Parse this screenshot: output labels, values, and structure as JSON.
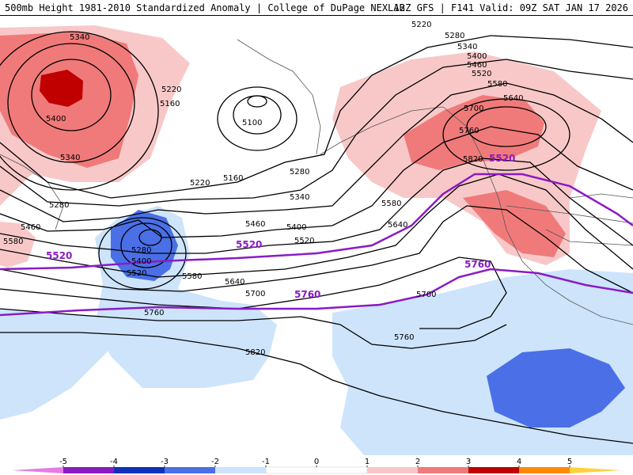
{
  "header": {
    "left": "500mb Height 1981-2010 Standardized Anomaly | College of DuPage NEXLAB",
    "right": "12Z GFS | F141 Valid: 09Z SAT JAN 17 2026"
  },
  "colors": {
    "neg5": "#e57ce5",
    "neg4": "#8a1bc4",
    "neg3": "#1030b8",
    "neg2": "#4a6fe6",
    "neg1": "#cde4fb",
    "pos1": "#f8c8c8",
    "pos2": "#f07a7a",
    "pos3": "#c00000",
    "pos4": "#ff8a00",
    "pos5": "#ffd23c",
    "purple_line": "#8a1bc4"
  },
  "contour_labels": [
    "5220",
    "5280",
    "5340",
    "5400",
    "5460",
    "5520",
    "5580",
    "5640",
    "5700",
    "5760",
    "5820",
    "5340",
    "5400",
    "5340",
    "5220",
    "5160",
    "5100",
    "5280",
    "5220",
    "5160",
    "5280",
    "5340",
    "5460",
    "5400",
    "5520",
    "5580",
    "5640",
    "5700",
    "5760",
    "5820",
    "5280",
    "5400",
    "5520",
    "5460",
    "5580",
    "5580",
    "5640",
    "5700",
    "5760",
    "5820",
    "5760",
    "5700"
  ],
  "purple_labels": [
    "5520",
    "5520",
    "5520",
    "5760",
    "5760"
  ],
  "colorbar": {
    "ticks": [
      "-5",
      "-4",
      "-3",
      "-2",
      "-1",
      "0",
      "1",
      "2",
      "3",
      "4",
      "5"
    ]
  }
}
